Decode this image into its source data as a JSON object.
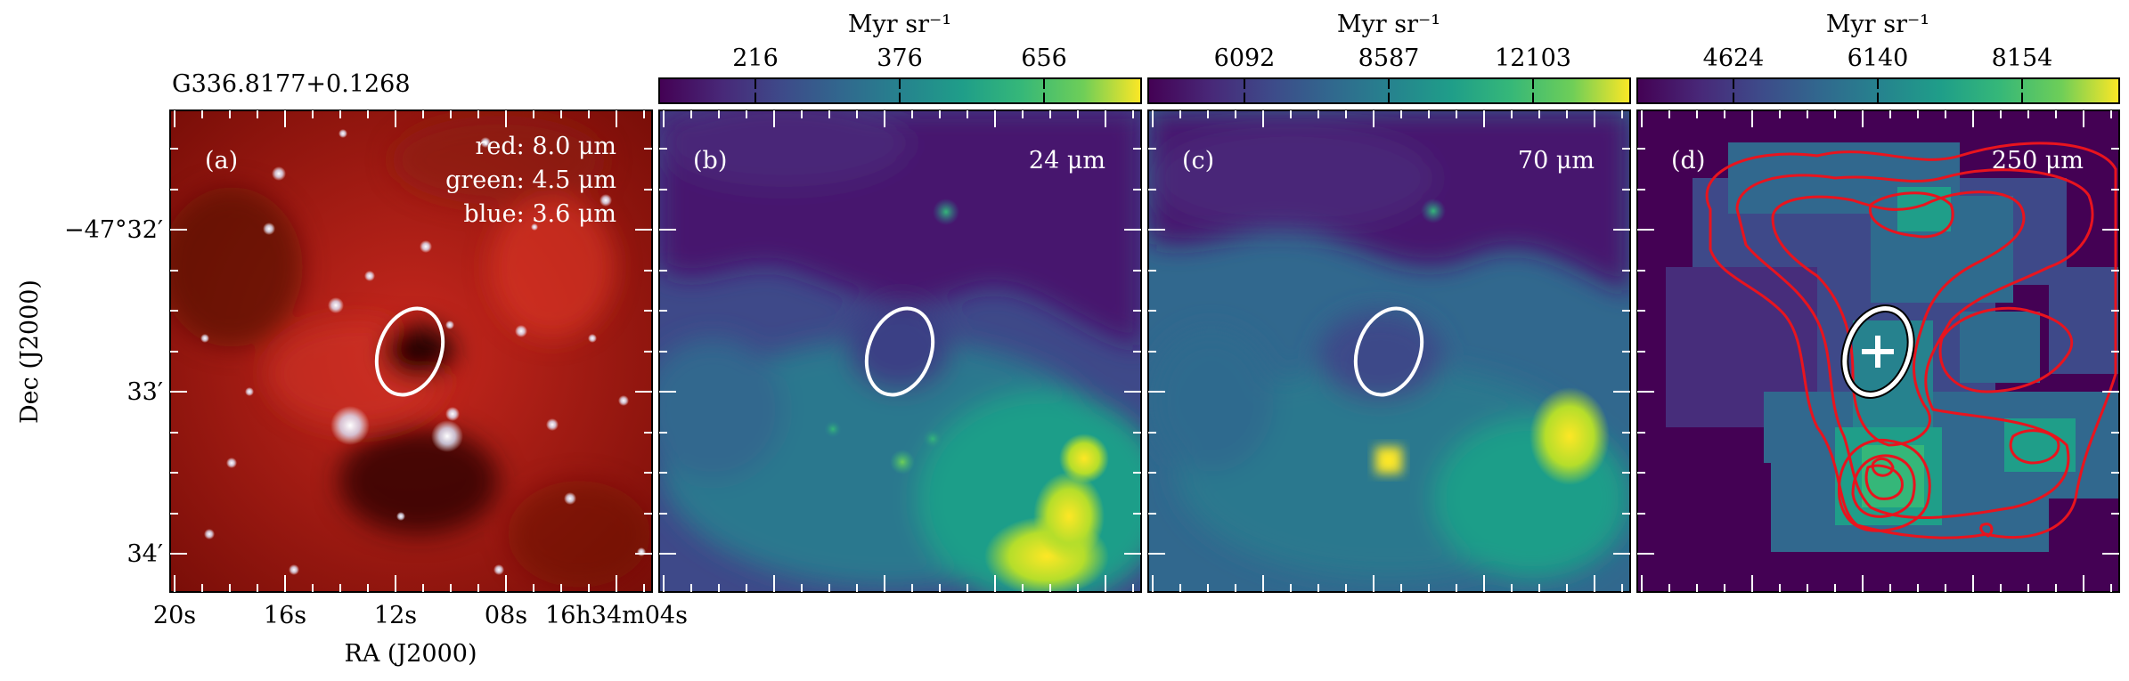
{
  "figure": {
    "source_name": "G336.8177+0.1268",
    "axes": {
      "xlabel": "RA (J2000)",
      "ylabel": "Dec (J2000)",
      "x_ticks": [
        "20s",
        "16s",
        "12s",
        "08s",
        "16h34m04s"
      ],
      "y_ticks": [
        "−47°32′",
        "33′",
        "34′"
      ]
    },
    "panels": [
      {
        "id": "a",
        "label": "(a)",
        "legend": [
          "red: 8.0 μm",
          "green: 4.5 μm",
          "blue: 3.6 μm"
        ],
        "colormap": "rgb-composite"
      },
      {
        "id": "b",
        "label": "(b)",
        "band": "24 μm",
        "colorbar": {
          "unit": "Myr sr⁻¹",
          "ticks": [
            "216",
            "376",
            "656"
          ]
        },
        "colormap": "viridis"
      },
      {
        "id": "c",
        "label": "(c)",
        "band": "70 μm",
        "colorbar": {
          "unit": "Myr sr⁻¹",
          "ticks": [
            "6092",
            "8587",
            "12103"
          ]
        },
        "colormap": "viridis"
      },
      {
        "id": "d",
        "label": "(d)",
        "band": "250 μm",
        "colorbar": {
          "unit": "Myr sr⁻¹",
          "ticks": [
            "4624",
            "6140",
            "8154"
          ]
        },
        "colormap": "viridis",
        "overlay": "red contours, source cross marker"
      }
    ],
    "ellipse_color": "#ffffff",
    "contour_color": "#e8141e"
  }
}
